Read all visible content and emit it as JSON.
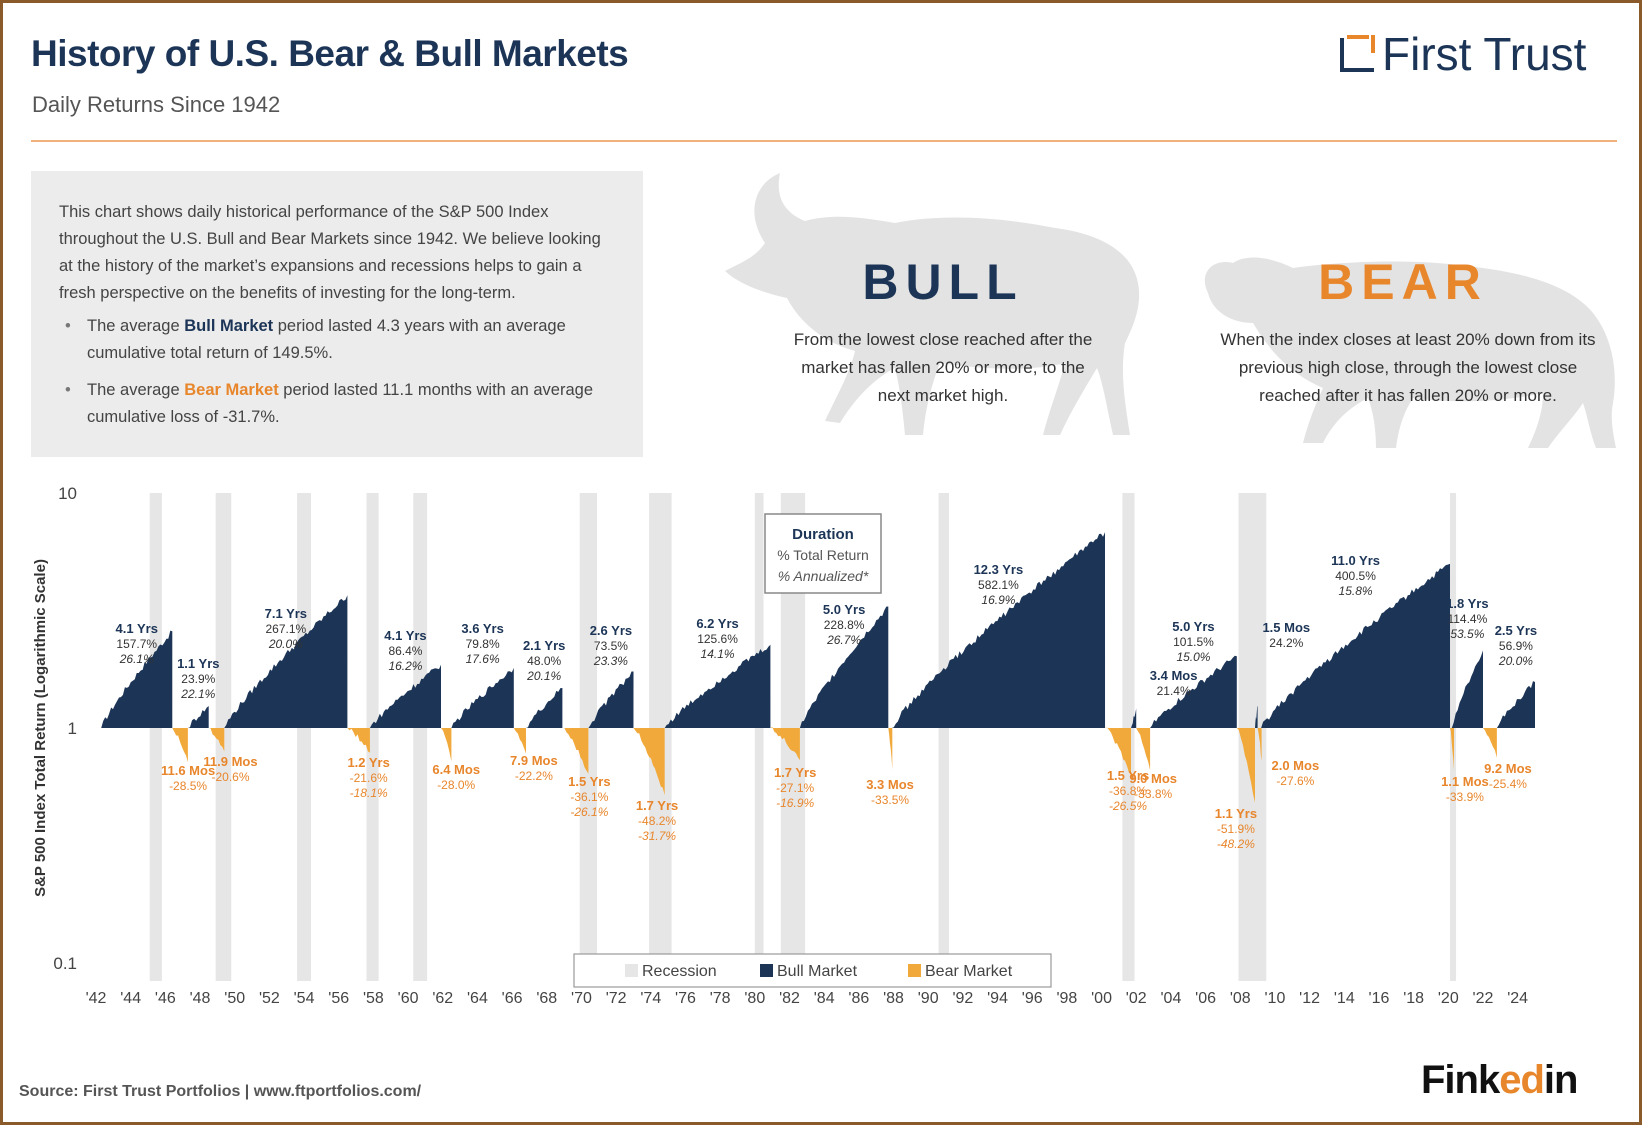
{
  "header": {
    "title": "History of U.S. Bear & Bull Markets",
    "subtitle": "Daily Returns Since 1942",
    "logo_text": "First Trust"
  },
  "info": {
    "paragraph": "This chart shows daily historical performance of the S&P 500 Index throughout the U.S. Bull and Bear Markets since 1942. We believe looking at the history of the market’s expansions and recessions helps to gain a fresh perspective on the benefits of investing for the long-term.",
    "bullet1_pre": "The average ",
    "bullet1_hl": "Bull Market",
    "bullet1_post": " period lasted 4.3 years with an average cumulative total return of 149.5%.",
    "bullet2_pre": "The average ",
    "bullet2_hl": "Bear Market",
    "bullet2_post": " period lasted 11.1 months with an average cumulative loss of -31.7%."
  },
  "definitions": {
    "bull_word": "BULL",
    "bull_text": "From the lowest close reached after the market has fallen 20% or more, to the next market high.",
    "bear_word": "BEAR",
    "bear_text": "When the index closes at least 20% down from its previous high close, through the lowest close reached after it has fallen 20% or more."
  },
  "footer": {
    "source": "Source: First Trust Portfolios | www.ftportfolios.com/",
    "brand_main": "Fink",
    "brand_accent": "ed",
    "brand_tail": "in"
  },
  "colors": {
    "bull": "#1c3557",
    "bear": "#f2a93b",
    "bear_text": "#e8862c",
    "recession": "#e6e6e6"
  },
  "chart_data": {
    "type": "area",
    "ylabel": "S&P 500 Index Total Return (Logarithmic Scale)",
    "y_scale": "log",
    "ylim": [
      0.1,
      10
    ],
    "y_ticks": [
      {
        "value": 10,
        "label": "10"
      },
      {
        "value": 1,
        "label": "1"
      },
      {
        "value": 0.1,
        "label": "0.1"
      }
    ],
    "xlim": [
      1942,
      2025
    ],
    "x_ticks": [
      "'42",
      "'44",
      "'46",
      "'48",
      "'50",
      "'52",
      "'54",
      "'56",
      "'58",
      "'60",
      "'62",
      "'64",
      "'66",
      "'68",
      "'70",
      "'72",
      "'74",
      "'76",
      "'78",
      "'80",
      "'82",
      "'84",
      "'86",
      "'88",
      "'90",
      "'92",
      "'94",
      "'96",
      "'98",
      "'00",
      "'02",
      "'04",
      "'06",
      "'08",
      "'10",
      "'12",
      "'14",
      "'16",
      "'18",
      "'20",
      "'22",
      "'24"
    ],
    "legend": {
      "position": "bottom-center",
      "items": [
        {
          "label": "Recession",
          "color": "#e6e6e6"
        },
        {
          "label": "Bull Market",
          "color": "#1c3557"
        },
        {
          "label": "Bear Market",
          "color": "#f2a93b"
        }
      ]
    },
    "callout": {
      "title": "Duration",
      "line2": "% Total Return",
      "line3": "% Annualized*"
    },
    "recessions": [
      [
        1945.1,
        1945.8
      ],
      [
        1948.9,
        1949.8
      ],
      [
        1953.6,
        1954.4
      ],
      [
        1957.6,
        1958.3
      ],
      [
        1960.3,
        1961.1
      ],
      [
        1969.9,
        1970.9
      ],
      [
        1973.9,
        1975.2
      ],
      [
        1980.0,
        1980.5
      ],
      [
        1981.5,
        1982.9
      ],
      [
        1990.6,
        1991.2
      ],
      [
        2001.2,
        2001.9
      ],
      [
        2007.9,
        2009.5
      ],
      [
        2020.1,
        2020.4
      ]
    ],
    "bull_markets": [
      {
        "start": 1942.3,
        "end": 1946.4,
        "duration": "4.1 Yrs",
        "return": "157.7%",
        "annualized": "26.1%",
        "peak": 2.58
      },
      {
        "start": 1947.3,
        "end": 1948.5,
        "duration": "1.1 Yrs",
        "return": "23.9%",
        "annualized": "22.1%",
        "peak": 1.24
      },
      {
        "start": 1949.4,
        "end": 1956.5,
        "duration": "7.1 Yrs",
        "return": "267.1%",
        "annualized": "20.0%",
        "peak": 3.67
      },
      {
        "start": 1957.8,
        "end": 1961.9,
        "duration": "4.1 Yrs",
        "return": "86.4%",
        "annualized": "16.2%",
        "peak": 1.86
      },
      {
        "start": 1962.5,
        "end": 1966.1,
        "duration": "3.6 Yrs",
        "return": "79.8%",
        "annualized": "17.6%",
        "peak": 1.8
      },
      {
        "start": 1966.8,
        "end": 1968.9,
        "duration": "2.1 Yrs",
        "return": "48.0%",
        "annualized": "20.1%",
        "peak": 1.48
      },
      {
        "start": 1970.4,
        "end": 1973.0,
        "duration": "2.6 Yrs",
        "return": "73.5%",
        "annualized": "23.3%",
        "peak": 1.74
      },
      {
        "start": 1974.8,
        "end": 1980.9,
        "duration": "6.2 Yrs",
        "return": "125.6%",
        "annualized": "14.1%",
        "peak": 2.26
      },
      {
        "start": 1982.6,
        "end": 1987.7,
        "duration": "5.0 Yrs",
        "return": "228.8%",
        "annualized": "26.7%",
        "peak": 3.29
      },
      {
        "start": 1987.9,
        "end": 2000.2,
        "duration": "12.3 Yrs",
        "return": "582.1%",
        "annualized": "16.9%",
        "peak": 6.82
      },
      {
        "start": 2001.7,
        "end": 2002.0,
        "duration": "3.4 Mos",
        "return": "21.4%",
        "annualized": "",
        "peak": 1.21
      },
      {
        "start": 2002.8,
        "end": 2007.8,
        "duration": "5.0 Yrs",
        "return": "101.5%",
        "annualized": "15.0%",
        "peak": 2.02
      },
      {
        "start": 2008.85,
        "end": 2009.0,
        "duration": "1.5 Mos",
        "return": "24.2%",
        "annualized": "",
        "peak": 1.24
      },
      {
        "start": 2009.2,
        "end": 2020.1,
        "duration": "11.0 Yrs",
        "return": "400.5%",
        "annualized": "15.8%",
        "peak": 5.0
      },
      {
        "start": 2020.2,
        "end": 2022.0,
        "duration": "1.8 Yrs",
        "return": "114.4%",
        "annualized": "53.5%",
        "peak": 2.14
      },
      {
        "start": 2022.8,
        "end": 2025.0,
        "duration": "2.5 Yrs",
        "return": "56.9%",
        "annualized": "20.0%",
        "peak": 1.57
      }
    ],
    "bear_markets": [
      {
        "start": 1946.4,
        "end": 1947.3,
        "duration": "11.6 Mos",
        "return": "-28.5%",
        "annualized": ""
      },
      {
        "start": 1948.5,
        "end": 1949.4,
        "duration": "11.9 Mos",
        "return": "-20.6%",
        "annualized": ""
      },
      {
        "start": 1956.5,
        "end": 1957.8,
        "duration": "1.2 Yrs",
        "return": "-21.6%",
        "annualized": "-18.1%"
      },
      {
        "start": 1961.9,
        "end": 1962.5,
        "duration": "6.4 Mos",
        "return": "-28.0%",
        "annualized": ""
      },
      {
        "start": 1966.1,
        "end": 1966.8,
        "duration": "7.9 Mos",
        "return": "-22.2%",
        "annualized": ""
      },
      {
        "start": 1968.9,
        "end": 1970.4,
        "duration": "1.5 Yrs",
        "return": "-36.1%",
        "annualized": "-26.1%"
      },
      {
        "start": 1973.0,
        "end": 1974.8,
        "duration": "1.7 Yrs",
        "return": "-48.2%",
        "annualized": "-31.7%"
      },
      {
        "start": 1980.9,
        "end": 1982.6,
        "duration": "1.7 Yrs",
        "return": "-27.1%",
        "annualized": "-16.9%"
      },
      {
        "start": 1987.7,
        "end": 1987.9,
        "duration": "3.3 Mos",
        "return": "-33.5%",
        "annualized": ""
      },
      {
        "start": 2000.2,
        "end": 2001.7,
        "duration": "1.5 Yrs",
        "return": "-36.8%",
        "annualized": "-26.5%"
      },
      {
        "start": 2002.0,
        "end": 2002.8,
        "duration": "9.0 Mos",
        "return": "-33.8%",
        "annualized": ""
      },
      {
        "start": 2007.8,
        "end": 2008.85,
        "duration": "1.1 Yrs",
        "return": "-51.9%",
        "annualized": "-48.2%"
      },
      {
        "start": 2009.0,
        "end": 2009.2,
        "duration": "2.0 Mos",
        "return": "-27.6%",
        "annualized": ""
      },
      {
        "start": 2020.1,
        "end": 2020.2,
        "duration": "1.1 Mos",
        "return": "-33.9%",
        "annualized": ""
      },
      {
        "start": 2022.0,
        "end": 2022.8,
        "duration": "9.2 Mos",
        "return": "-25.4%",
        "annualized": ""
      }
    ]
  }
}
